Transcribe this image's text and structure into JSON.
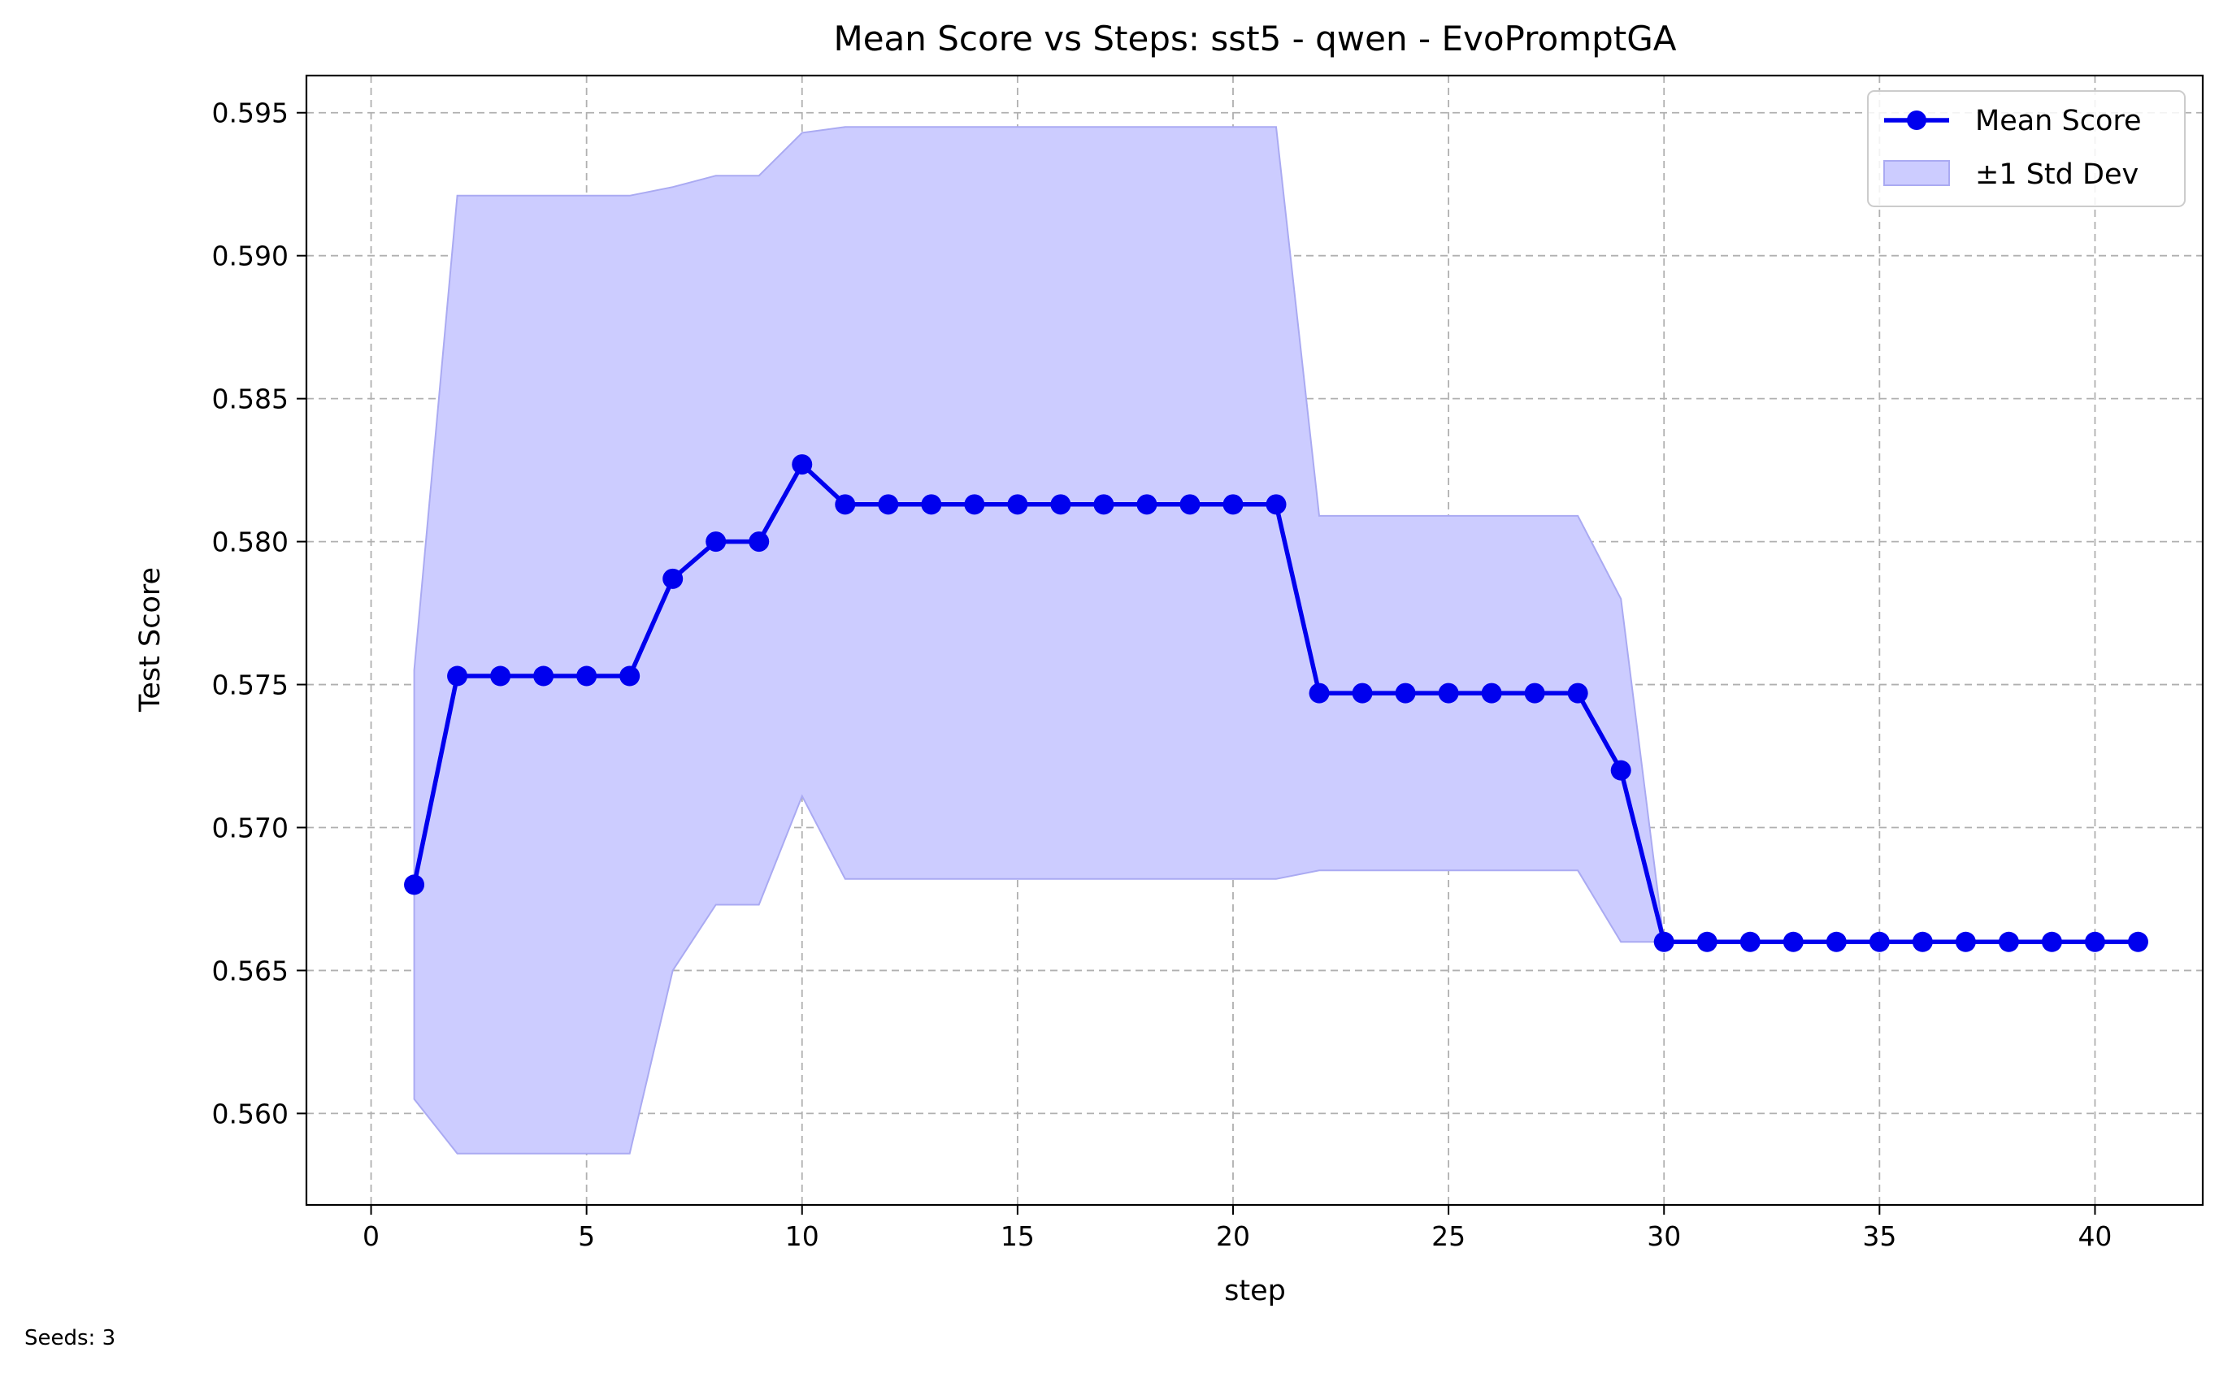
{
  "chart_data": {
    "type": "line",
    "title": "Mean Score vs Steps: sst5 - qwen - EvoPromptGA",
    "xlabel": "step",
    "ylabel": "Test Score",
    "xlim": [
      -1.5,
      42.5
    ],
    "ylim": [
      0.5568,
      0.5963
    ],
    "xticks": [
      0,
      5,
      10,
      15,
      20,
      25,
      30,
      35,
      40
    ],
    "yticks": [
      0.56,
      0.565,
      0.57,
      0.575,
      0.58,
      0.585,
      0.59,
      0.595
    ],
    "ytick_labels": [
      "0.560",
      "0.565",
      "0.570",
      "0.575",
      "0.580",
      "0.585",
      "0.590",
      "0.595"
    ],
    "grid": true,
    "legend_position": "top-right",
    "x": [
      1,
      2,
      3,
      4,
      5,
      6,
      7,
      8,
      9,
      10,
      11,
      12,
      13,
      14,
      15,
      16,
      17,
      18,
      19,
      20,
      21,
      22,
      23,
      24,
      25,
      26,
      27,
      28,
      29,
      30,
      31,
      32,
      33,
      34,
      35,
      36,
      37,
      38,
      39,
      40,
      41
    ],
    "series": [
      {
        "name": "Mean Score",
        "color": "#0000ee",
        "values": [
          0.568,
          0.5753,
          0.5753,
          0.5753,
          0.5753,
          0.5753,
          0.5787,
          0.58,
          0.58,
          0.5827,
          0.5813,
          0.5813,
          0.5813,
          0.5813,
          0.5813,
          0.5813,
          0.5813,
          0.5813,
          0.5813,
          0.5813,
          0.5813,
          0.5747,
          0.5747,
          0.5747,
          0.5747,
          0.5747,
          0.5747,
          0.5747,
          0.572,
          0.566,
          0.566,
          0.566,
          0.566,
          0.566,
          0.566,
          0.566,
          0.566,
          0.566,
          0.566,
          0.566,
          0.566
        ]
      }
    ],
    "band": {
      "name": "±1 Std Dev",
      "color": "#ccccff",
      "edge_color": "#aaaaf2",
      "lower": [
        0.5605,
        0.5586,
        0.5586,
        0.5586,
        0.5586,
        0.5586,
        0.565,
        0.5673,
        0.5673,
        0.5711,
        0.5682,
        0.5682,
        0.5682,
        0.5682,
        0.5682,
        0.5682,
        0.5682,
        0.5682,
        0.5682,
        0.5682,
        0.5682,
        0.5685,
        0.5685,
        0.5685,
        0.5685,
        0.5685,
        0.5685,
        0.5685,
        0.566,
        0.566,
        0.566,
        0.566,
        0.566,
        0.566,
        0.566,
        0.566,
        0.566,
        0.566,
        0.566,
        0.566,
        0.566
      ],
      "upper": [
        0.5755,
        0.5921,
        0.5921,
        0.5921,
        0.5921,
        0.5921,
        0.5924,
        0.5928,
        0.5928,
        0.5943,
        0.5945,
        0.5945,
        0.5945,
        0.5945,
        0.5945,
        0.5945,
        0.5945,
        0.5945,
        0.5945,
        0.5945,
        0.5945,
        0.5809,
        0.5809,
        0.5809,
        0.5809,
        0.5809,
        0.5809,
        0.5809,
        0.578,
        0.566,
        0.566,
        0.566,
        0.566,
        0.566,
        0.566,
        0.566,
        0.566,
        0.566,
        0.566,
        0.566,
        0.566
      ]
    }
  },
  "footnote": "Seeds: 3"
}
